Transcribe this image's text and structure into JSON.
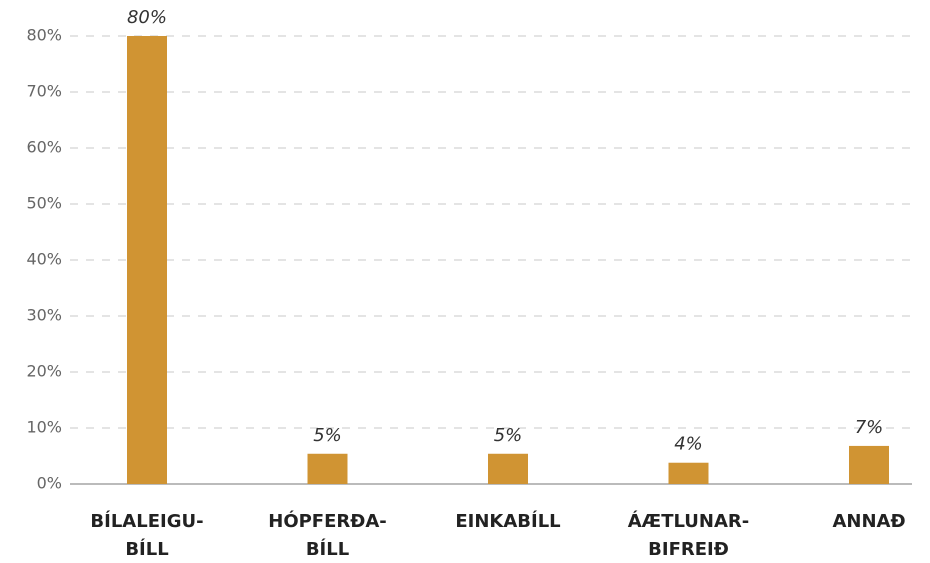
{
  "chart_data": {
    "type": "bar",
    "categories": [
      [
        "BÍLALEIGU-",
        "BÍLL"
      ],
      [
        "HÓPFERÐA-",
        "BÍLL"
      ],
      [
        "EINKABÍLL"
      ],
      [
        "ÁÆTLUNAR-",
        "BIFREIÐ"
      ],
      [
        "ANNAÐ"
      ]
    ],
    "values": [
      80,
      5.4,
      5.4,
      3.8,
      6.8
    ],
    "value_labels": [
      "80%",
      "5%",
      "5%",
      "4%",
      "7%"
    ],
    "color": "#d09433",
    "ylim": [
      0,
      80
    ],
    "yticks": [
      {
        "value": 0,
        "label": "0%"
      },
      {
        "value": 10,
        "label": "10%"
      },
      {
        "value": 20,
        "label": "20%"
      },
      {
        "value": 30,
        "label": "30%"
      },
      {
        "value": 40,
        "label": "40%"
      },
      {
        "value": 50,
        "label": "50%"
      },
      {
        "value": 60,
        "label": "60%"
      },
      {
        "value": 70,
        "label": "70%"
      },
      {
        "value": 80,
        "label": "80%"
      }
    ],
    "grid": true
  }
}
